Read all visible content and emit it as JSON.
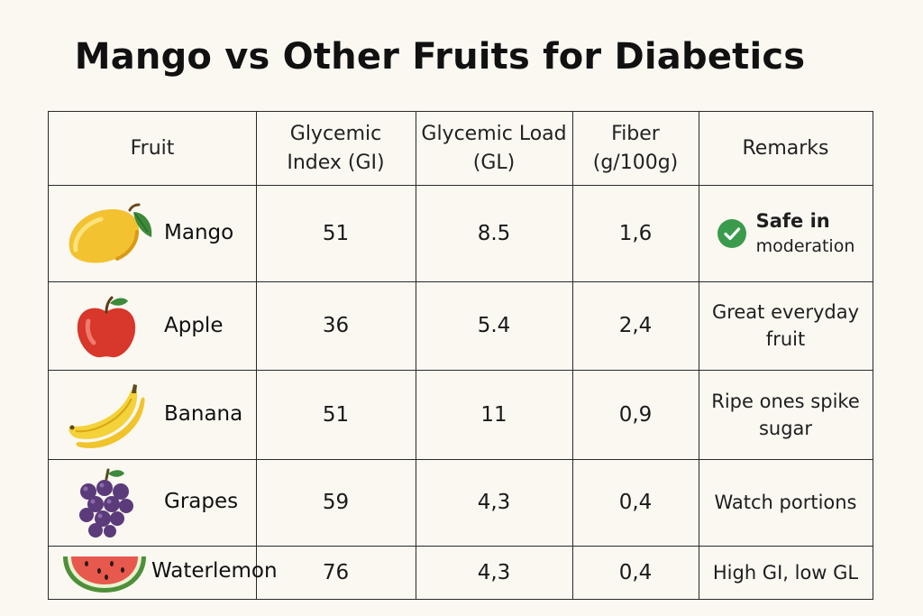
{
  "title": "Mango vs Other Fruits for Diabetics",
  "headers": {
    "fruit": "Fruit",
    "gi": "Glycemic Index (GI)",
    "gl": "Glycemic Load (GL)",
    "fiber": "Fiber (g/100g)",
    "remarks": "Remarks"
  },
  "rows": [
    {
      "fruit": "Mango",
      "icon": "mango-icon",
      "gi": "51",
      "gl": "8.5",
      "fiber": "1,6",
      "remark_main": "Safe in",
      "remark_sub": "moderation",
      "remark_icon": "check-circle-icon"
    },
    {
      "fruit": "Apple",
      "icon": "apple-icon",
      "gi": "36",
      "gl": "5.4",
      "fiber": "2,4",
      "remark": "Great everyday fruit"
    },
    {
      "fruit": "Banana",
      "icon": "banana-icon",
      "gi": "51",
      "gl": "11",
      "fiber": "0,9",
      "remark": "Ripe ones spike sugar"
    },
    {
      "fruit": "Grapes",
      "icon": "grapes-icon",
      "gi": "59",
      "gl": "4,3",
      "fiber": "0,4",
      "remark": "Watch portions"
    },
    {
      "fruit": "Waterlemon",
      "icon": "watermelon-icon",
      "gi": "76",
      "gl": "4,3",
      "fiber": "0,4",
      "remark": "High GI, low GL"
    }
  ],
  "colors": {
    "background": "#fbf8f2",
    "border": "#2a2a2a",
    "check_green": "#3a9b4d",
    "mango": "#f2c230",
    "apple": "#d8372b",
    "banana": "#f3d23a",
    "grapes": "#5b3b7a",
    "watermelon_flesh": "#e7584d",
    "watermelon_rind": "#4f8f3a"
  }
}
